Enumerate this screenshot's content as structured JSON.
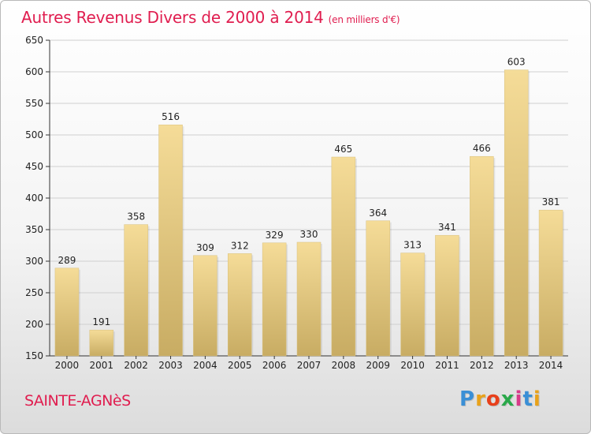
{
  "header": {
    "title": "Autres Revenus Divers de 2000 à 2014",
    "subtitle": "(en milliers d'€)"
  },
  "footer": {
    "town": "SAINTE-AGNèS",
    "logo_letters": [
      "P",
      "r",
      "o",
      "x",
      "i",
      "t",
      "i"
    ],
    "logo_colors": [
      "#3a8fd6",
      "#e8a21b",
      "#e8401b",
      "#2aa84a",
      "#d83a8a",
      "#3a8fd6",
      "#e8a21b"
    ]
  },
  "colors": {
    "title": "#e01d4f",
    "bar_light": "#f5dc98",
    "bar_dark": "#c8ac63",
    "axis": "#333333"
  },
  "chart_data": {
    "type": "bar",
    "categories": [
      "2000",
      "2001",
      "2002",
      "2003",
      "2004",
      "2005",
      "2006",
      "2007",
      "2008",
      "2009",
      "2010",
      "2011",
      "2012",
      "2013",
      "2014"
    ],
    "values": [
      289,
      191,
      358,
      516,
      309,
      312,
      329,
      330,
      465,
      364,
      313,
      341,
      466,
      603,
      381
    ],
    "title": "Autres Revenus Divers de 2000 à 2014",
    "subtitle": "(en milliers d'€)",
    "xlabel": "",
    "ylabel": "",
    "ylim": [
      150,
      650
    ],
    "yticks": [
      150,
      200,
      250,
      300,
      350,
      400,
      450,
      500,
      550,
      600,
      650
    ],
    "grid": true
  }
}
